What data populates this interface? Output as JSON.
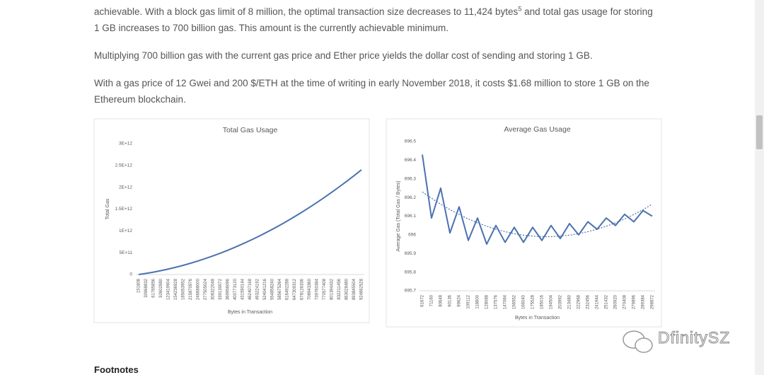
{
  "paragraphs": [
    {
      "before": "achievable. With a block gas limit of 8 million, the optimal transaction size decreases to 11,424 bytes",
      "sup": "5",
      "after": " and total gas usage for storing 1 GB increases to 700 billion gas. This amount is the currently achievable minimum."
    },
    {
      "text": "Multiplying 700 billion gas with the current gas price and Ether price yields the dollar cost of sending and storing 1 GB."
    },
    {
      "text": "With a gas price of 12 Gwei and 200 $/ETH at the time of writing in early November 2018, it costs $1.68 million to store 1 GB on the Ethereum blockchain."
    }
  ],
  "chart_data": [
    {
      "type": "line",
      "title": "Total Gas Usage",
      "x_label": "Bytes in Transaction",
      "y_label": "Total Gas",
      "categories": [
        "151808",
        "30968832",
        "61785856",
        "92602880",
        "123419904",
        "154236928",
        "185053952",
        "215870976",
        "246688000",
        "277505024",
        "308322048",
        "339139072",
        "369956096",
        "400773120",
        "431590144",
        "462407168",
        "493224192",
        "524041216",
        "554858240",
        "585675264",
        "616492288",
        "647309312",
        "678126336",
        "708943360",
        "739760384",
        "770577408",
        "801394432",
        "832211456",
        "863028480",
        "893845504",
        "924662528"
      ],
      "series": [
        {
          "color": "#4a72b0",
          "values": [
            0,
            25900000000.0,
            55500000000.0,
            88800000000.0,
            125900000000.0,
            166700000000.0,
            211200000000.0,
            259500000000.0,
            311500000000.0,
            367200000000.0,
            426700000000.0,
            489900000000.0,
            556800000000.0,
            627500000000.0,
            701900000000.0,
            780000000000.0,
            861900000000.0,
            947500000000.0,
            1036800000000.0,
            1129900000000.0,
            1226700000000.0,
            1327200000000.0,
            1431500000000.0,
            1539500000000.0,
            1651200000000.0,
            1766700000000.0,
            1885900000000.0,
            2008800000000.0,
            2135500000000.0,
            2265900000000.0,
            2400000000000.0
          ]
        }
      ],
      "ylim": [
        0,
        3000000000000.0
      ],
      "yticks": [
        0,
        {
          "value": 500000000000.0,
          "label": "5E+11"
        },
        {
          "value": 1000000000000.0,
          "label": "1E+12"
        },
        {
          "value": 1500000000000.0,
          "label": "1.5E+12"
        },
        {
          "value": 2000000000000.0,
          "label": "2E+12"
        },
        {
          "value": 2500000000000.0,
          "label": "2.5E+12"
        },
        {
          "value": 3000000000000.0,
          "label": "3E+12"
        }
      ]
    },
    {
      "type": "line",
      "title": "Average Gas Usage",
      "x_label": "Bytes in Transaction",
      "y_label": "Average Gas (Total Gas / Bytes)",
      "categories": [
        "61672",
        "71160",
        "80648",
        "90136",
        "99624",
        "109112",
        "118600",
        "128088",
        "137576",
        "147064",
        "156552",
        "166040",
        "175528",
        "185016",
        "194504",
        "203992",
        "213480",
        "222968",
        "232456",
        "241944",
        "251432",
        "260920",
        "270408",
        "279896",
        "289384",
        "298872"
      ],
      "series": [
        {
          "color": "#4a72b0",
          "values": [
            696.43,
            696.09,
            696.25,
            696.01,
            696.15,
            695.97,
            696.09,
            695.95,
            696.05,
            695.96,
            696.04,
            695.96,
            696.04,
            695.97,
            696.05,
            695.98,
            696.06,
            696.0,
            696.07,
            696.03,
            696.09,
            696.05,
            696.11,
            696.07,
            696.13,
            696.1
          ]
        },
        {
          "color": "#4a72b0",
          "dashed": true,
          "values": [
            696.23,
            696.196,
            696.164,
            696.135,
            696.109,
            696.085,
            696.064,
            696.046,
            696.03,
            696.017,
            696.006,
            695.998,
            695.993,
            695.99,
            695.99,
            695.993,
            695.998,
            696.006,
            696.017,
            696.03,
            696.046,
            696.064,
            696.085,
            696.109,
            696.135,
            696.164
          ]
        }
      ],
      "ylim": [
        695.7,
        696.5
      ],
      "yticks": [
        695.7,
        695.8,
        695.9,
        696,
        696.1,
        696.2,
        696.3,
        696.4,
        696.5
      ]
    }
  ],
  "footnotes_heading": "Footnotes",
  "watermark": "DfinitySZ"
}
